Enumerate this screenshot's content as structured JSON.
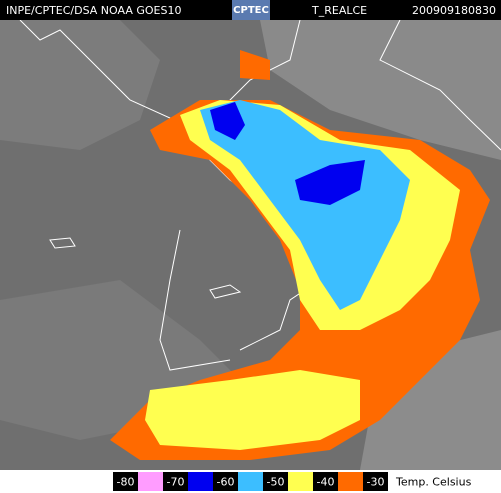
{
  "header": {
    "source": "INPE/CPTEC/DSA NOAA GOES10",
    "logo": "CPTEC",
    "product": "T_REALCE",
    "timestamp": "200909180830"
  },
  "legend": {
    "labels": [
      -80,
      -70,
      -60,
      -50,
      -40,
      -30
    ],
    "colors": [
      "#ff9cff",
      "#0000f0",
      "#3cbeff",
      "#ffff50",
      "#ff6a00"
    ],
    "unit": "Temp. Celsius"
  }
}
